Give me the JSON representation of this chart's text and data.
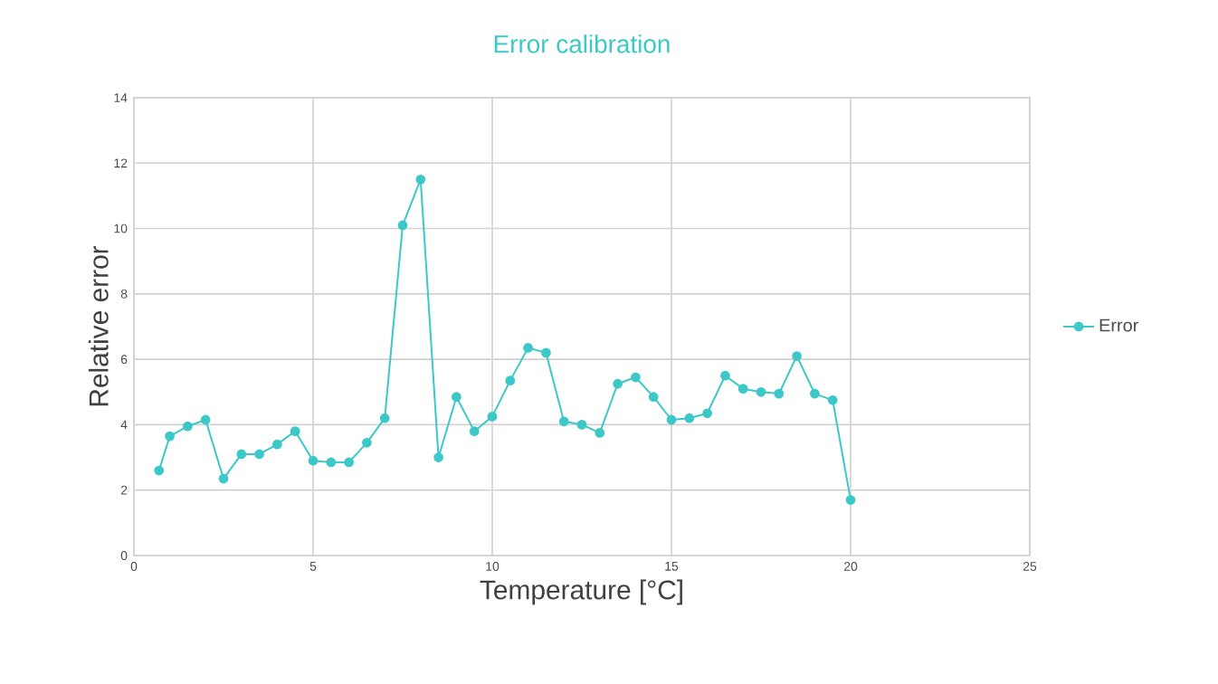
{
  "chart_data": {
    "type": "line",
    "title": "Error calibration",
    "xlabel": "Temperature [°C]",
    "ylabel": "Relative error",
    "xlim": [
      0,
      25
    ],
    "xticks": [
      0,
      5,
      10,
      15,
      20,
      25
    ],
    "ylim": [
      0,
      14
    ],
    "yticks": [
      0,
      2,
      4,
      6,
      8,
      10,
      12,
      14
    ],
    "grid": true,
    "legend": "right",
    "marker": "circle",
    "line_style": "solid",
    "series": [
      {
        "name": "Error",
        "color": "#3cc8c8",
        "x": [
          0.7,
          1,
          1.5,
          2,
          2.5,
          3,
          3.5,
          4,
          4.5,
          5,
          5.5,
          6,
          6.5,
          7,
          7.5,
          8,
          8.5,
          9,
          9.5,
          10,
          10.5,
          11,
          11.5,
          12,
          12.5,
          13,
          13.5,
          14,
          14.5,
          15,
          15.5,
          16,
          16.5,
          17,
          17.5,
          18,
          18.5,
          19,
          19.5,
          20
        ],
        "values": [
          2.6,
          3.65,
          3.95,
          4.15,
          2.35,
          3.1,
          3.1,
          3.4,
          3.8,
          2.9,
          2.85,
          2.85,
          3.45,
          4.2,
          10.1,
          11.5,
          3.0,
          4.85,
          3.8,
          4.25,
          5.35,
          6.35,
          6.2,
          4.1,
          4.0,
          3.75,
          5.25,
          5.45,
          4.85,
          4.15,
          4.2,
          4.35,
          5.5,
          5.1,
          5.0,
          4.95,
          6.1,
          4.95,
          4.75,
          1.7
        ]
      }
    ]
  }
}
